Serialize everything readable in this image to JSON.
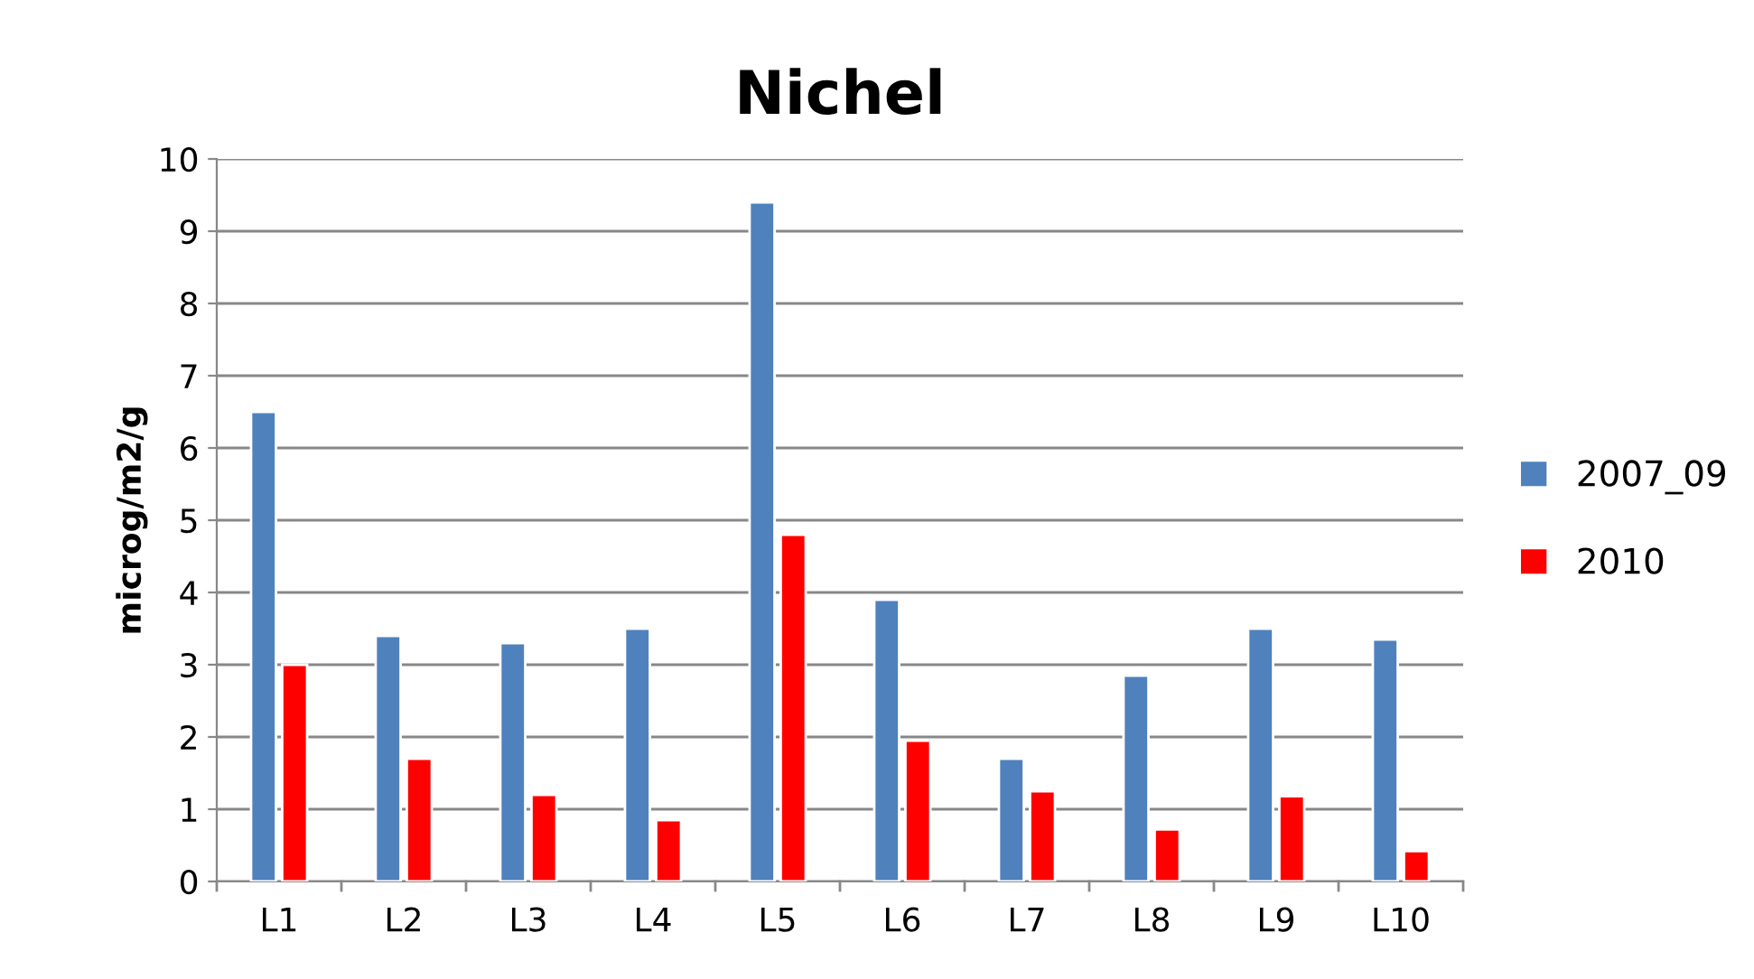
{
  "chart_data": {
    "type": "bar",
    "title": "Nichel",
    "ylabel": "microg/m2/g",
    "categories": [
      "L1",
      "L2",
      "L3",
      "L4",
      "L5",
      "L6",
      "L7",
      "L8",
      "L9",
      "L10"
    ],
    "series": [
      {
        "name": "2007_09",
        "color": "#4f81bd",
        "values": [
          6.5,
          3.4,
          3.3,
          3.5,
          9.4,
          3.9,
          1.7,
          2.85,
          3.5,
          3.35
        ]
      },
      {
        "name": "2010",
        "color": "#ff0000",
        "values": [
          3.0,
          1.7,
          1.2,
          0.85,
          4.8,
          1.95,
          1.25,
          0.72,
          1.18,
          0.42
        ]
      }
    ],
    "ylim": [
      0,
      10
    ],
    "yticks": [
      0,
      1,
      2,
      3,
      4,
      5,
      6,
      7,
      8,
      9,
      10
    ],
    "grid": "y",
    "legend": "right"
  }
}
